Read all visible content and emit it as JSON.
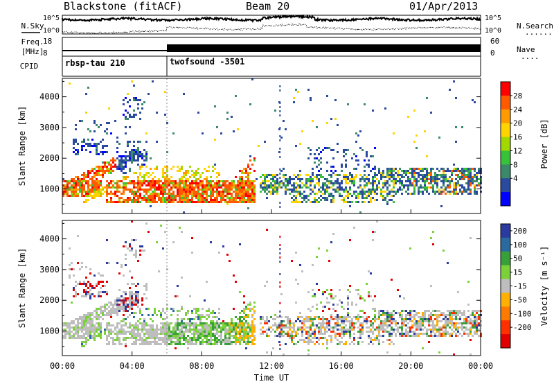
{
  "header": {
    "site": "Blackstone (fitACF)",
    "beam": "Beam 20",
    "date": "01/Apr/2013"
  },
  "panel_labels": {
    "nsky": "N.Sky",
    "freq_top": "Freq.",
    "freq_unit": "[MHz]",
    "cpid": "CPID",
    "nsearch": "N.Search",
    "nave": "Nave",
    "legend_dots": "........."
  },
  "noise_axis_ticks": [
    "10^5",
    "10^0"
  ],
  "freq_axis_ticks": [
    "18",
    "8"
  ],
  "nave_axis_ticks": [
    "60",
    "0"
  ],
  "cpid_segments": [
    {
      "label": "rbsp-tau 210",
      "start_hour": 0
    },
    {
      "label": "twofsound -3501",
      "start_hour": 6
    }
  ],
  "chart_data": [
    {
      "type": "heatmap",
      "name": "power",
      "ylabel": "Slant Range [km]",
      "y_ticks": [
        1000,
        2000,
        3000,
        4000
      ],
      "ylim": [
        200,
        4600
      ],
      "colorbar_label": "Power [dB]",
      "colorbar_ticks": [
        "28",
        "24",
        "20",
        "16",
        "12",
        "8",
        "4"
      ],
      "colorbar_colors": [
        "#ff0000",
        "#ff5a00",
        "#ff9a00",
        "#ffd400",
        "#a0d800",
        "#38c238",
        "#3a8a6a",
        "#2a4aa0",
        "#0000ff"
      ]
    },
    {
      "type": "heatmap",
      "name": "velocity",
      "ylabel": "Slant Range [km]",
      "y_ticks": [
        1000,
        2000,
        3000,
        4000
      ],
      "ylim": [
        200,
        4600
      ],
      "colorbar_label": "Velocity [m s⁻¹]",
      "colorbar_ticks": [
        "200",
        "100",
        "50",
        "15",
        "-15",
        "-50",
        "-100",
        "-200"
      ],
      "colorbar_colors": [
        "#2a3aa0",
        "#2a6aa0",
        "#38a038",
        "#7ad238",
        "#bebebe",
        "#ffb000",
        "#ff7a00",
        "#ff3000",
        "#e00000"
      ]
    }
  ],
  "time_axis": {
    "label": "Time UT",
    "ticks": [
      "00:00",
      "04:00",
      "08:00",
      "12:00",
      "16:00",
      "20:00",
      "00:00"
    ],
    "range_hours": [
      0,
      24
    ]
  }
}
